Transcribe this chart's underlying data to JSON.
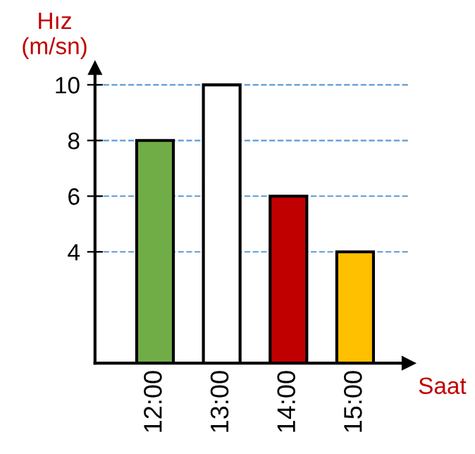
{
  "chart_data": {
    "type": "bar",
    "xlabel": "Saat",
    "ylabel": "Hız\n(m/sn)",
    "categories": [
      "12:00",
      "13:00",
      "14:00",
      "15:00"
    ],
    "values": [
      8,
      10,
      6,
      4
    ],
    "colors": [
      "#70ad47",
      "#ffffff",
      "#c00000",
      "#ffc000"
    ],
    "ylim": [
      0,
      10.6
    ],
    "yticks": [
      4,
      6,
      8,
      10
    ],
    "grid": "y"
  }
}
